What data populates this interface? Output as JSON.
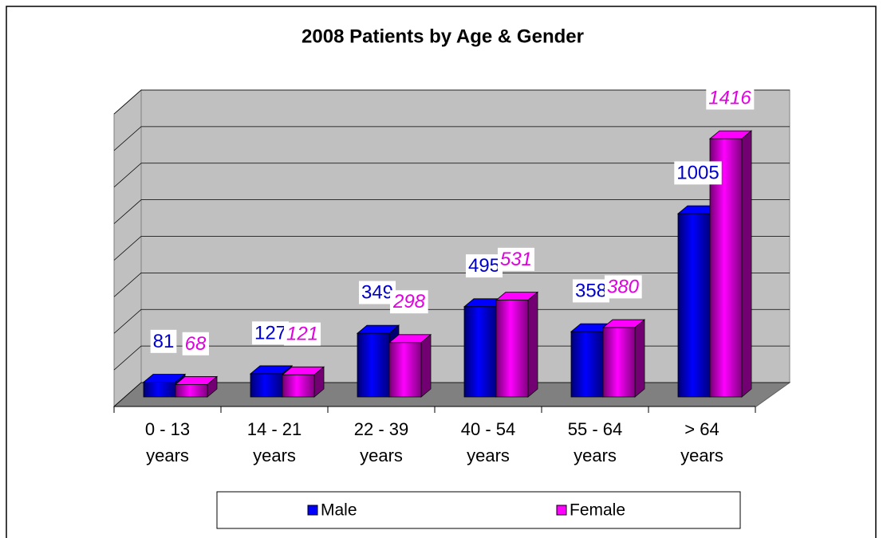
{
  "chart_data": {
    "type": "bar3d",
    "title": "2008 Patients by Age & Gender",
    "categories": [
      "0 - 13 years",
      "14 - 21 years",
      "22 - 39 years",
      "40 - 54 years",
      "55 - 64 years",
      "> 64 years"
    ],
    "series": [
      {
        "name": "Male",
        "color": "#0000ff",
        "values": [
          81,
          127,
          349,
          495,
          358,
          1005
        ]
      },
      {
        "name": "Female",
        "color": "#ff00ff",
        "values": [
          68,
          121,
          298,
          531,
          380,
          1416
        ]
      }
    ],
    "ylim": [
      0,
      1600
    ],
    "yticks": [
      0,
      200,
      400,
      600,
      800,
      1000,
      1200,
      1400,
      1600
    ],
    "grid": true,
    "legend": "bottom"
  }
}
